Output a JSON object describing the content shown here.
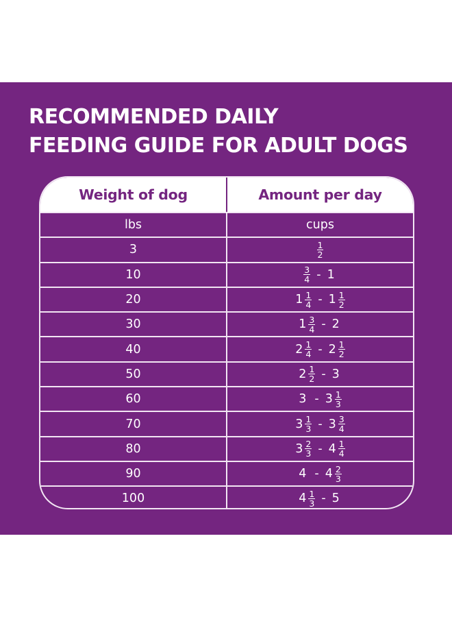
{
  "title": {
    "line1": "RECOMMENDED DAILY",
    "line2": "FEEDING GUIDE FOR ADULT DOGS"
  },
  "colors": {
    "panel_background": "#742580",
    "text": "#ffffff",
    "header_background": "#ffffff",
    "header_text": "#742580",
    "grid_lines": "#f2e6f3"
  },
  "table": {
    "columns": [
      "Weight of dog",
      "Amount per day"
    ],
    "units": [
      "lbs",
      "cups"
    ],
    "rows": [
      {
        "weight": "3",
        "amount": "1/2",
        "from": {
          "whole": "",
          "num": "1",
          "den": "2"
        },
        "to": null
      },
      {
        "weight": "10",
        "amount": "3/4 - 1",
        "from": {
          "whole": "",
          "num": "3",
          "den": "4"
        },
        "to": {
          "whole": "1",
          "num": "",
          "den": ""
        }
      },
      {
        "weight": "20",
        "amount": "1 1/4 - 1 1/2",
        "from": {
          "whole": "1",
          "num": "1",
          "den": "4"
        },
        "to": {
          "whole": "1",
          "num": "1",
          "den": "2"
        }
      },
      {
        "weight": "30",
        "amount": "1 3/4 - 2",
        "from": {
          "whole": "1",
          "num": "3",
          "den": "4"
        },
        "to": {
          "whole": "2",
          "num": "",
          "den": ""
        }
      },
      {
        "weight": "40",
        "amount": "2 1/4 - 2 1/2",
        "from": {
          "whole": "2",
          "num": "1",
          "den": "4"
        },
        "to": {
          "whole": "2",
          "num": "1",
          "den": "2"
        }
      },
      {
        "weight": "50",
        "amount": "2 1/2 - 3",
        "from": {
          "whole": "2",
          "num": "1",
          "den": "2"
        },
        "to": {
          "whole": "3",
          "num": "",
          "den": ""
        }
      },
      {
        "weight": "60",
        "amount": "3 - 3 1/3",
        "from": {
          "whole": "3",
          "num": "",
          "den": ""
        },
        "to": {
          "whole": "3",
          "num": "1",
          "den": "3"
        }
      },
      {
        "weight": "70",
        "amount": "3 1/3 - 3 3/4",
        "from": {
          "whole": "3",
          "num": "1",
          "den": "3"
        },
        "to": {
          "whole": "3",
          "num": "3",
          "den": "4"
        }
      },
      {
        "weight": "80",
        "amount": "3 2/3 - 4 1/4",
        "from": {
          "whole": "3",
          "num": "2",
          "den": "3"
        },
        "to": {
          "whole": "4",
          "num": "1",
          "den": "4"
        }
      },
      {
        "weight": "90",
        "amount": "4 - 4 2/3",
        "from": {
          "whole": "4",
          "num": "",
          "den": ""
        },
        "to": {
          "whole": "4",
          "num": "2",
          "den": "3"
        }
      },
      {
        "weight": "100",
        "amount": "4 1/3 - 5",
        "from": {
          "whole": "4",
          "num": "1",
          "den": "3"
        },
        "to": {
          "whole": "5",
          "num": "",
          "den": ""
        }
      }
    ],
    "separator": "-"
  }
}
